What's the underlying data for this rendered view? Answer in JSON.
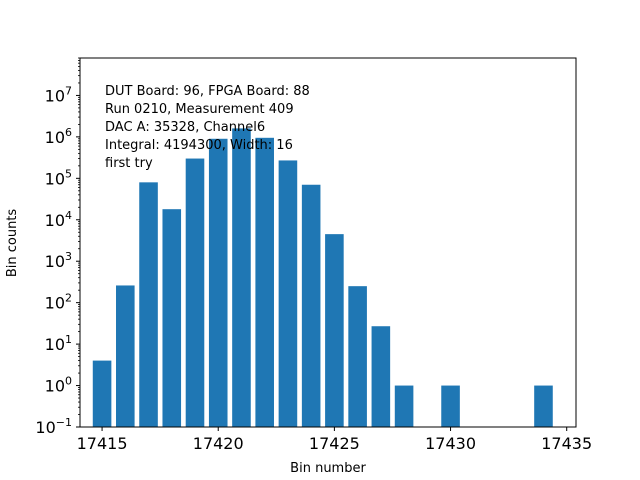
{
  "chart_data": {
    "type": "bar",
    "xlabel": "Bin number",
    "ylabel": "Bin counts",
    "yscale": "log",
    "xlim": [
      17414.05,
      17435.4
    ],
    "ylim": [
      0.1,
      80000000
    ],
    "x_ticks": [
      17415,
      17420,
      17425,
      17430,
      17435
    ],
    "y_ticks": [
      {
        "value": 0.1,
        "base": "10",
        "exp": "−1"
      },
      {
        "value": 1,
        "base": "10",
        "exp": "0"
      },
      {
        "value": 10,
        "base": "10",
        "exp": "1"
      },
      {
        "value": 100,
        "base": "10",
        "exp": "2"
      },
      {
        "value": 1000,
        "base": "10",
        "exp": "3"
      },
      {
        "value": 10000,
        "base": "10",
        "exp": "4"
      },
      {
        "value": 100000,
        "base": "10",
        "exp": "5"
      },
      {
        "value": 1000000,
        "base": "10",
        "exp": "6"
      },
      {
        "value": 10000000,
        "base": "10",
        "exp": "7"
      }
    ],
    "bar_width": 0.8,
    "bar_color": "#1f77b4",
    "grid": false,
    "x": [
      17415,
      17416,
      17417,
      17418,
      17419,
      17420,
      17421,
      17422,
      17423,
      17424,
      17425,
      17426,
      17427,
      17428,
      17430,
      17434
    ],
    "values": [
      4,
      260,
      80000,
      18000,
      300000,
      900000,
      1600000,
      950000,
      270000,
      70000,
      4500,
      250,
      27,
      1,
      1,
      1
    ],
    "annotations": [
      "DUT Board: 96, FPGA Board: 88",
      "Run 0210, Measurement 409",
      "DAC A: 35328, Channel6",
      "Integral: 4194300, Width: 16",
      "first try"
    ]
  }
}
